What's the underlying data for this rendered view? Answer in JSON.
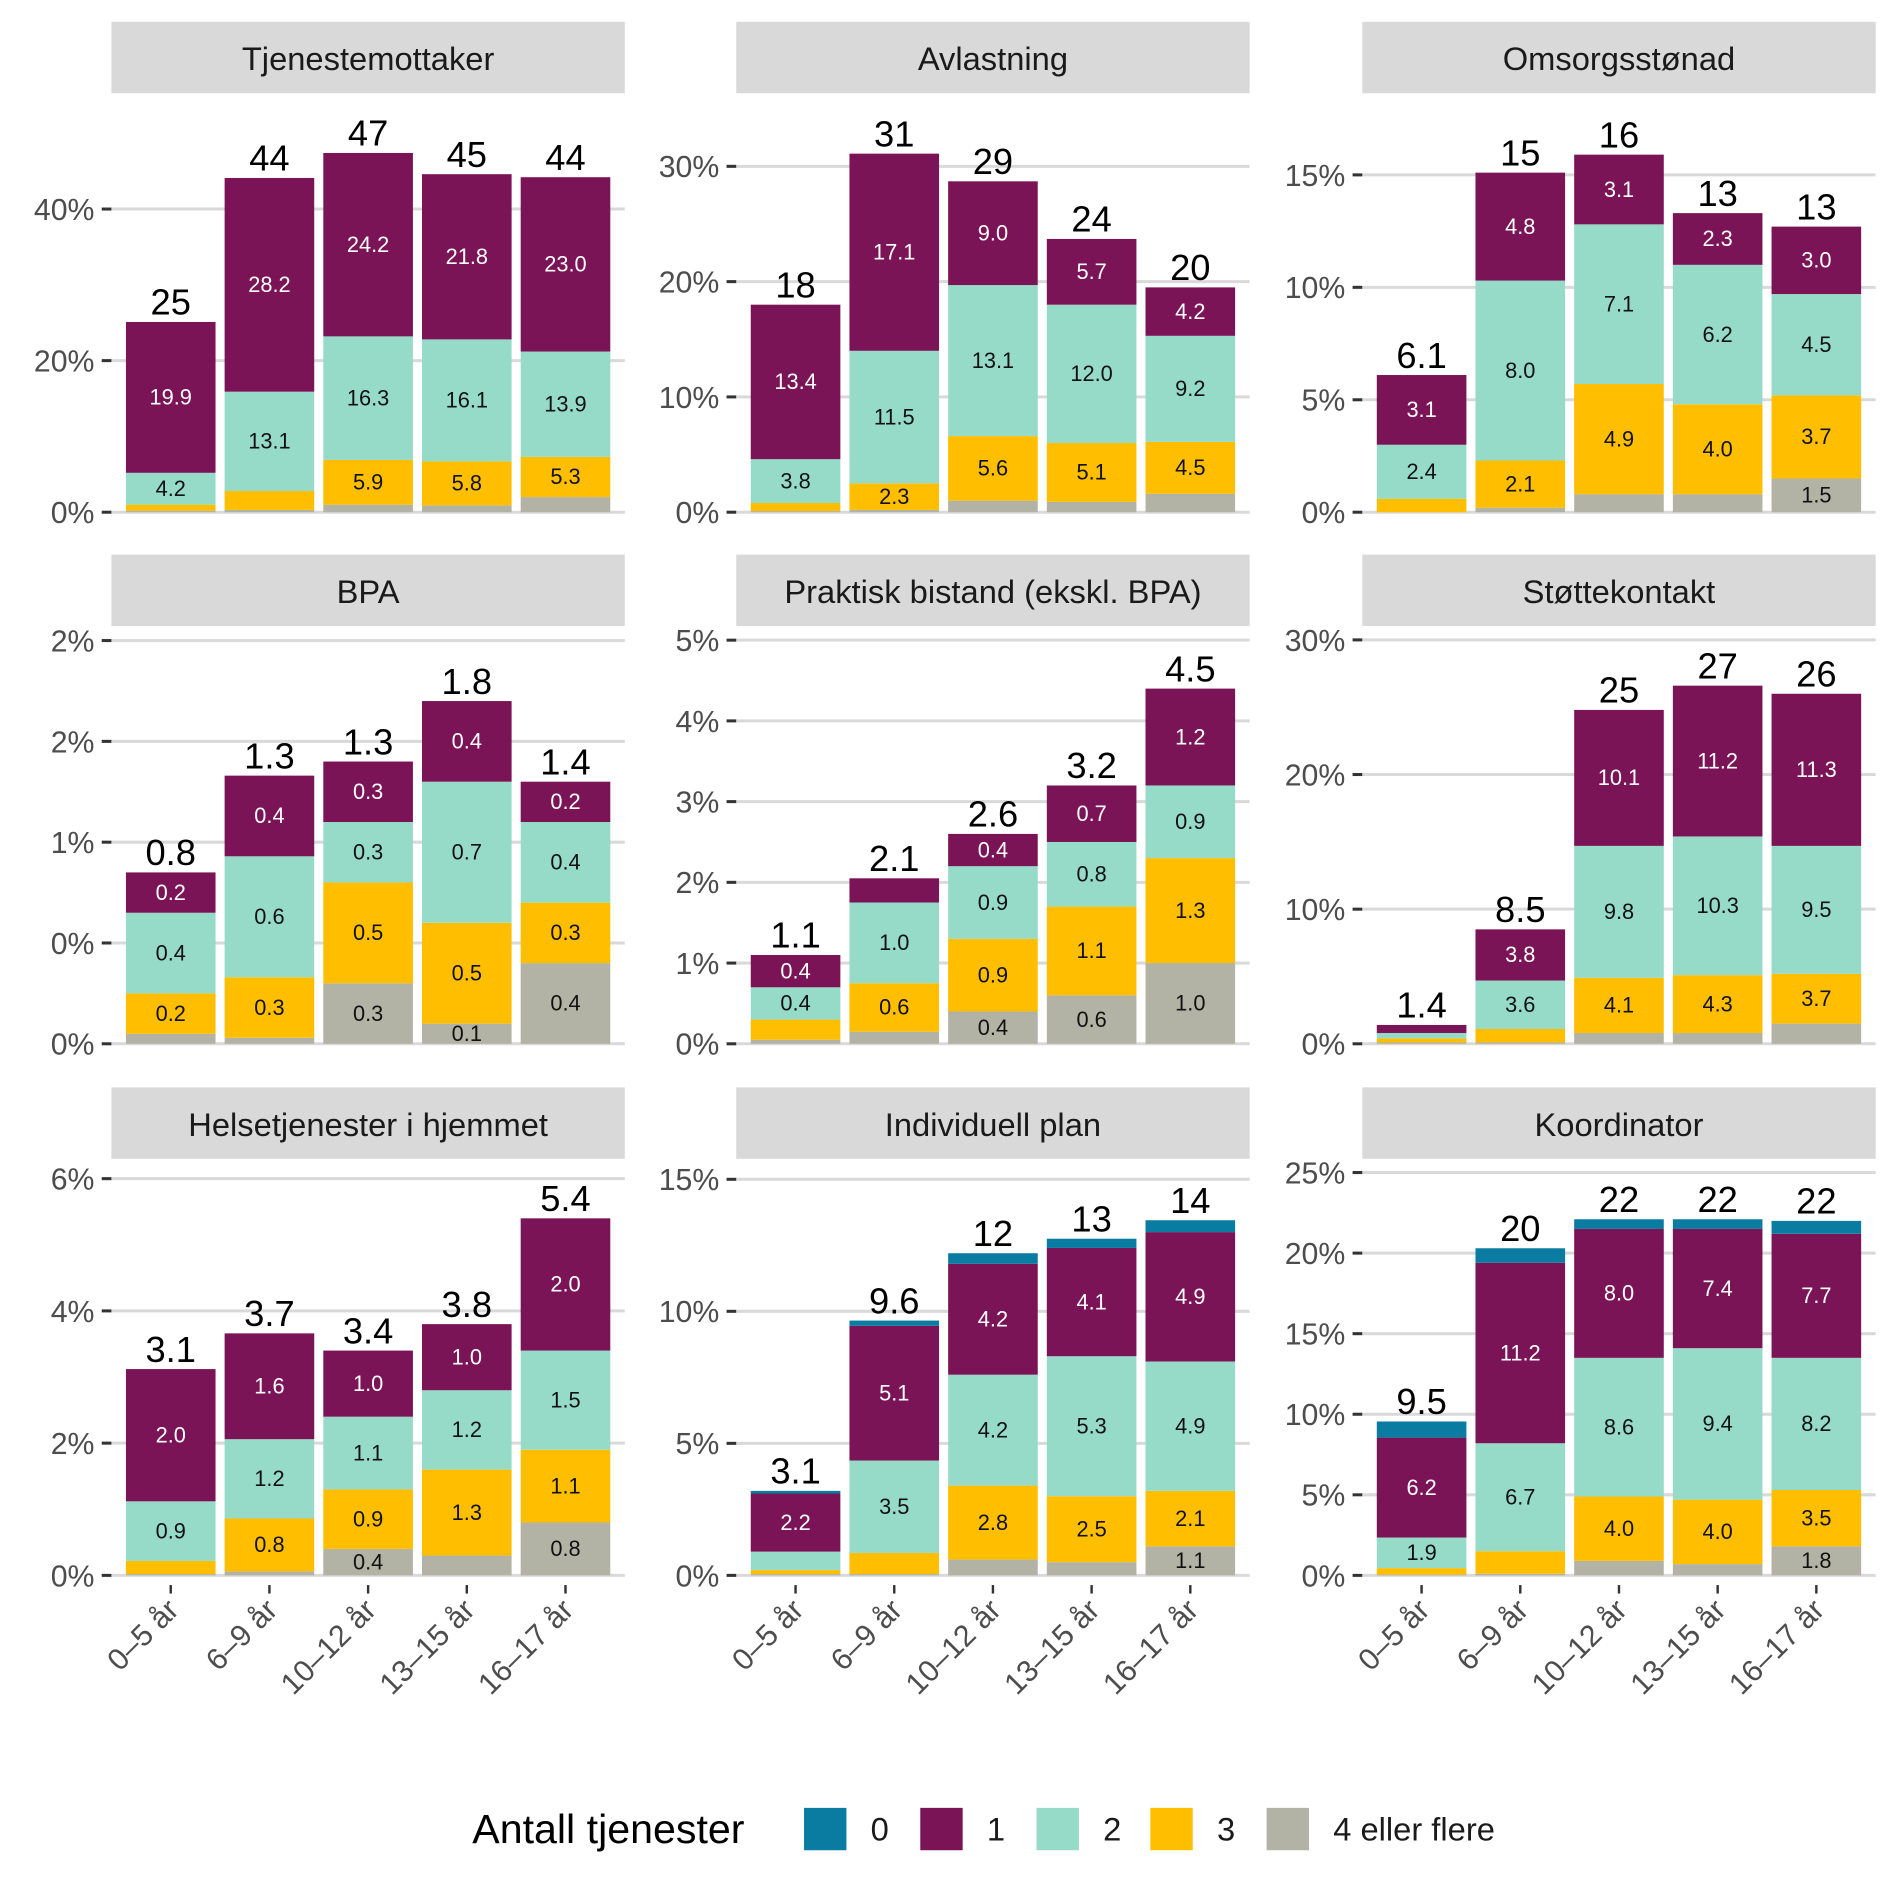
{
  "chart_data": {
    "type": "bar",
    "stacked": true,
    "categories": [
      "0–5 år",
      "6–9 år",
      "10–12 år",
      "13–15 år",
      "16–17 år"
    ],
    "legend": {
      "title": "Antall tjenester",
      "position": "bottom",
      "entries": [
        {
          "name": "0",
          "color": "#0a7ca2"
        },
        {
          "name": "1",
          "color": "#7b1457"
        },
        {
          "name": "2",
          "color": "#95dbc8"
        },
        {
          "name": "3",
          "color": "#ffbe00"
        },
        {
          "name": "4 eller flere",
          "color": "#b2b3a5"
        }
      ]
    },
    "grid": true,
    "panels": [
      {
        "title": "Tjenestemottaker",
        "ylim": [
          0,
          54
        ],
        "yticks": [
          0,
          20,
          40
        ],
        "ytick_labels": [
          "0%",
          "20%",
          "40%"
        ],
        "totals": [
          "25",
          "44",
          "47",
          "45",
          "44"
        ],
        "series": [
          {
            "name": "0",
            "values": [
              0,
              0,
              0,
              0,
              0
            ],
            "labels": [
              "",
              "",
              "",
              "",
              ""
            ]
          },
          {
            "name": "1",
            "values": [
              19.9,
              28.2,
              24.2,
              21.8,
              23.0
            ],
            "labels": [
              "19.9",
              "28.2",
              "24.2",
              "21.8",
              "23.0"
            ]
          },
          {
            "name": "2",
            "values": [
              4.2,
              13.1,
              16.3,
              16.1,
              13.9
            ],
            "labels": [
              "4.2",
              "13.1",
              "16.3",
              "16.1",
              "13.9"
            ]
          },
          {
            "name": "3",
            "values": [
              0.8,
              2.5,
              5.9,
              5.8,
              5.3
            ],
            "labels": [
              "",
              "",
              "5.9",
              "5.8",
              "5.3"
            ]
          },
          {
            "name": "4 eller flere",
            "values": [
              0.2,
              0.3,
              1.0,
              0.9,
              2.0
            ],
            "labels": [
              "",
              "",
              "",
              "",
              ""
            ]
          }
        ]
      },
      {
        "title": "Avlastning",
        "ylim": [
          0,
          35.5
        ],
        "yticks": [
          0,
          10,
          20,
          30
        ],
        "ytick_labels": [
          "0%",
          "10%",
          "20%",
          "30%"
        ],
        "totals": [
          "18",
          "31",
          "29",
          "24",
          "20"
        ],
        "series": [
          {
            "name": "0",
            "values": [
              0,
              0,
              0,
              0,
              0
            ],
            "labels": [
              "",
              "",
              "",
              "",
              ""
            ]
          },
          {
            "name": "1",
            "values": [
              13.4,
              17.1,
              9.0,
              5.7,
              4.2
            ],
            "labels": [
              "13.4",
              "17.1",
              "9.0",
              "5.7",
              "4.2"
            ]
          },
          {
            "name": "2",
            "values": [
              3.8,
              11.5,
              13.1,
              12.0,
              9.2
            ],
            "labels": [
              "3.8",
              "11.5",
              "13.1",
              "12.0",
              "9.2"
            ]
          },
          {
            "name": "3",
            "values": [
              0.7,
              2.3,
              5.6,
              5.1,
              4.5
            ],
            "labels": [
              "",
              "2.3",
              "5.6",
              "5.1",
              "4.5"
            ]
          },
          {
            "name": "4 eller flere",
            "values": [
              0.1,
              0.2,
              1.0,
              0.9,
              1.6
            ],
            "labels": [
              "",
              "",
              "",
              "",
              ""
            ]
          }
        ]
      },
      {
        "title": "Omsorgsstønad",
        "ylim": [
          0,
          18.2
        ],
        "yticks": [
          0,
          5,
          10,
          15
        ],
        "ytick_labels": [
          "0%",
          "5%",
          "10%",
          "15%"
        ],
        "totals": [
          "6.1",
          "15",
          "16",
          "13",
          "13"
        ],
        "series": [
          {
            "name": "0",
            "values": [
              0,
              0,
              0,
              0,
              0
            ],
            "labels": [
              "",
              "",
              "",
              "",
              ""
            ]
          },
          {
            "name": "1",
            "values": [
              3.1,
              4.8,
              3.1,
              2.3,
              3.0
            ],
            "labels": [
              "3.1",
              "4.8",
              "3.1",
              "2.3",
              "3.0"
            ]
          },
          {
            "name": "2",
            "values": [
              2.4,
              8.0,
              7.1,
              6.2,
              4.5
            ],
            "labels": [
              "2.4",
              "8.0",
              "7.1",
              "6.2",
              "4.5"
            ]
          },
          {
            "name": "3",
            "values": [
              0.6,
              2.1,
              4.9,
              4.0,
              3.7
            ],
            "labels": [
              "",
              "2.1",
              "4.9",
              "4.0",
              "3.7"
            ]
          },
          {
            "name": "4 eller flere",
            "values": [
              0.0,
              0.2,
              0.8,
              0.8,
              1.5
            ],
            "labels": [
              "",
              "",
              "",
              "",
              "1.5"
            ]
          }
        ]
      },
      {
        "title": "BPA",
        "ylim": [
          0,
          2.03
        ],
        "yticks": [
          0,
          0.5,
          1,
          1.5,
          2
        ],
        "ytick_labels": [
          "0%",
          "0%",
          "1%",
          "2%",
          "2%"
        ],
        "totals": [
          "0.8",
          "1.3",
          "1.3",
          "1.8",
          "1.4"
        ],
        "series": [
          {
            "name": "0",
            "values": [
              0,
              0,
              0,
              0,
              0
            ],
            "labels": [
              "",
              "",
              "",
              "",
              ""
            ]
          },
          {
            "name": "1",
            "values": [
              0.2,
              0.4,
              0.3,
              0.4,
              0.2
            ],
            "labels": [
              "0.2",
              "0.4",
              "0.3",
              "0.4",
              "0.2"
            ]
          },
          {
            "name": "2",
            "values": [
              0.4,
              0.6,
              0.3,
              0.7,
              0.4
            ],
            "labels": [
              "0.4",
              "0.6",
              "0.3",
              "0.7",
              "0.4"
            ]
          },
          {
            "name": "3",
            "values": [
              0.2,
              0.3,
              0.5,
              0.5,
              0.3
            ],
            "labels": [
              "0.2",
              "0.3",
              "0.5",
              "0.5",
              "0.3"
            ]
          },
          {
            "name": "4 eller flere",
            "values": [
              0.05,
              0.03,
              0.3,
              0.1,
              0.4
            ],
            "labels": [
              "",
              "",
              "0.3",
              "0.1",
              "0.4"
            ]
          }
        ]
      },
      {
        "title": "Praktisk bistand (ekskl. BPA)",
        "ylim": [
          0,
          5.07
        ],
        "yticks": [
          0,
          1,
          2,
          3,
          4,
          5
        ],
        "ytick_labels": [
          "0%",
          "1%",
          "2%",
          "3%",
          "4%",
          "5%"
        ],
        "totals": [
          "1.1",
          "2.1",
          "2.6",
          "3.2",
          "4.5"
        ],
        "series": [
          {
            "name": "0",
            "values": [
              0,
              0,
              0,
              0,
              0
            ],
            "labels": [
              "",
              "",
              "",
              "",
              ""
            ]
          },
          {
            "name": "1",
            "values": [
              0.4,
              0.3,
              0.4,
              0.7,
              1.2
            ],
            "labels": [
              "0.4",
              "",
              "0.4",
              "0.7",
              "1.2"
            ]
          },
          {
            "name": "2",
            "values": [
              0.4,
              1.0,
              0.9,
              0.8,
              0.9
            ],
            "labels": [
              "0.4",
              "1.0",
              "0.9",
              "0.8",
              "0.9"
            ]
          },
          {
            "name": "3",
            "values": [
              0.25,
              0.6,
              0.9,
              1.1,
              1.3
            ],
            "labels": [
              "",
              "0.6",
              "0.9",
              "1.1",
              "1.3"
            ]
          },
          {
            "name": "4 eller flere",
            "values": [
              0.05,
              0.15,
              0.4,
              0.6,
              1.0
            ],
            "labels": [
              "",
              "",
              "0.4",
              "0.6",
              "1.0"
            ]
          }
        ]
      },
      {
        "title": "Støttekontakt",
        "ylim": [
          0,
          30.4
        ],
        "yticks": [
          0,
          10,
          20,
          30
        ],
        "ytick_labels": [
          "0%",
          "10%",
          "20%",
          "30%"
        ],
        "totals": [
          "1.4",
          "8.5",
          "25",
          "27",
          "26"
        ],
        "series": [
          {
            "name": "0",
            "values": [
              0,
              0,
              0,
              0,
              0
            ],
            "labels": [
              "",
              "",
              "",
              "",
              ""
            ]
          },
          {
            "name": "1",
            "values": [
              0.6,
              3.8,
              10.1,
              11.2,
              11.3
            ],
            "labels": [
              "",
              "3.8",
              "10.1",
              "11.2",
              "11.3"
            ]
          },
          {
            "name": "2",
            "values": [
              0.4,
              3.6,
              9.8,
              10.3,
              9.5
            ],
            "labels": [
              "",
              "3.6",
              "9.8",
              "10.3",
              "9.5"
            ]
          },
          {
            "name": "3",
            "values": [
              0.3,
              1.0,
              4.1,
              4.3,
              3.7
            ],
            "labels": [
              "",
              "",
              "4.1",
              "4.3",
              "3.7"
            ]
          },
          {
            "name": "4 eller flere",
            "values": [
              0.1,
              0.1,
              0.8,
              0.8,
              1.5
            ],
            "labels": [
              "",
              "",
              "",
              "",
              ""
            ]
          }
        ]
      },
      {
        "title": "Helsetjenester i hjemmet",
        "ylim": [
          0,
          6.19
        ],
        "yticks": [
          0,
          2,
          4,
          6
        ],
        "ytick_labels": [
          "0%",
          "2%",
          "4%",
          "6%"
        ],
        "totals": [
          "3.1",
          "3.7",
          "3.4",
          "3.8",
          "5.4"
        ],
        "series": [
          {
            "name": "0",
            "values": [
              0,
              0,
              0,
              0,
              0
            ],
            "labels": [
              "",
              "",
              "",
              "",
              ""
            ]
          },
          {
            "name": "1",
            "values": [
              2.0,
              1.6,
              1.0,
              1.0,
              2.0
            ],
            "labels": [
              "2.0",
              "1.6",
              "1.0",
              "1.0",
              "2.0"
            ]
          },
          {
            "name": "2",
            "values": [
              0.9,
              1.2,
              1.1,
              1.2,
              1.5
            ],
            "labels": [
              "0.9",
              "1.2",
              "1.1",
              "1.2",
              "1.5"
            ]
          },
          {
            "name": "3",
            "values": [
              0.2,
              0.8,
              0.9,
              1.3,
              1.1
            ],
            "labels": [
              "",
              "0.8",
              "0.9",
              "1.3",
              "1.1"
            ]
          },
          {
            "name": "4 eller flere",
            "values": [
              0.02,
              0.06,
              0.4,
              0.3,
              0.8
            ],
            "labels": [
              "",
              "",
              "0.4",
              "",
              "0.8"
            ]
          }
        ]
      },
      {
        "title": "Individuell plan",
        "ylim": [
          0,
          15.5
        ],
        "yticks": [
          0,
          5,
          10,
          15
        ],
        "ytick_labels": [
          "0%",
          "5%",
          "10%",
          "15%"
        ],
        "totals": [
          "3.1",
          "9.6",
          "12",
          "13",
          "14"
        ],
        "series": [
          {
            "name": "0",
            "values": [
              0.1,
              0.2,
              0.4,
              0.35,
              0.45
            ],
            "labels": [
              "",
              "",
              "",
              "",
              ""
            ]
          },
          {
            "name": "1",
            "values": [
              2.2,
              5.1,
              4.2,
              4.1,
              4.9
            ],
            "labels": [
              "2.2",
              "5.1",
              "4.2",
              "4.1",
              "4.9"
            ]
          },
          {
            "name": "2",
            "values": [
              0.7,
              3.5,
              4.2,
              5.3,
              4.9
            ],
            "labels": [
              "",
              "3.5",
              "4.2",
              "5.3",
              "4.9"
            ]
          },
          {
            "name": "3",
            "values": [
              0.15,
              0.8,
              2.8,
              2.5,
              2.1
            ],
            "labels": [
              "",
              "",
              "2.8",
              "2.5",
              "2.1"
            ]
          },
          {
            "name": "4 eller flere",
            "values": [
              0.05,
              0.05,
              0.6,
              0.5,
              1.1
            ],
            "labels": [
              "",
              "",
              "",
              "",
              "1.1"
            ]
          }
        ]
      },
      {
        "title": "Koordinator",
        "ylim": [
          0,
          25.4
        ],
        "yticks": [
          0,
          5,
          10,
          15,
          20,
          25
        ],
        "ytick_labels": [
          "0%",
          "5%",
          "10%",
          "15%",
          "20%",
          "25%"
        ],
        "totals": [
          "9.5",
          "20",
          "22",
          "22",
          "22"
        ],
        "series": [
          {
            "name": "0",
            "values": [
              1.0,
              0.9,
              0.6,
              0.6,
              0.8
            ],
            "labels": [
              "",
              "",
              "",
              "",
              ""
            ]
          },
          {
            "name": "1",
            "values": [
              6.2,
              11.2,
              8.0,
              7.4,
              7.7
            ],
            "labels": [
              "6.2",
              "11.2",
              "8.0",
              "7.4",
              "7.7"
            ]
          },
          {
            "name": "2",
            "values": [
              1.9,
              6.7,
              8.6,
              9.4,
              8.2
            ],
            "labels": [
              "1.9",
              "6.7",
              "8.6",
              "9.4",
              "8.2"
            ]
          },
          {
            "name": "3",
            "values": [
              0.4,
              1.4,
              4.0,
              4.0,
              3.5
            ],
            "labels": [
              "",
              "",
              "4.0",
              "4.0",
              "3.5"
            ]
          },
          {
            "name": "4 eller flere",
            "values": [
              0.05,
              0.1,
              0.9,
              0.7,
              1.8
            ],
            "labels": [
              "",
              "",
              "",
              "",
              "1.8"
            ]
          }
        ]
      }
    ]
  }
}
